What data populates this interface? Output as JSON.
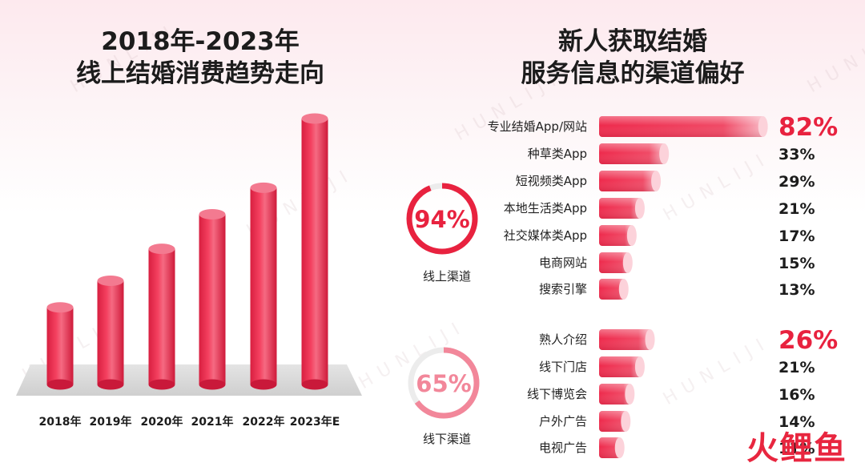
{
  "watermark_text": "HUNLIJI",
  "logo_text": "火鲤鱼",
  "left_panel": {
    "title_line1": "2018年-2023年",
    "title_line2": "线上结婚消费趋势走向"
  },
  "right_panel": {
    "title_line1": "新人获取结婚",
    "title_line2": "服务信息的渠道偏好"
  },
  "colors": {
    "bar_red": "#ee2f4f",
    "highlight_red": "#e8223f",
    "ring_red": "#e8223f",
    "ring_pink": "#f2879a",
    "platform_gray": "#d9d9d9"
  },
  "chart_data": [
    {
      "type": "bar",
      "title": "2018年-2023年 线上结婚消费趋势走向",
      "categories": [
        "2018年",
        "2019年",
        "2020年",
        "2021年",
        "2022年",
        "2023年E"
      ],
      "values": [
        29,
        39,
        51,
        64,
        74,
        100
      ],
      "ylim": [
        0,
        100
      ],
      "xlabel": "",
      "ylabel": "",
      "grid": false,
      "legend": "none"
    },
    {
      "type": "bar",
      "orientation": "horizontal",
      "title": "新人获取结婚 服务信息的渠道偏好",
      "unit": "%",
      "xlim": [
        0,
        100
      ],
      "groups": [
        {
          "name": "线上渠道",
          "total": 94,
          "total_label": "94%",
          "categories": [
            "专业结婚App/网站",
            "种草类App",
            "短视频类App",
            "本地生活类App",
            "社交媒体类App",
            "电商网站",
            "搜索引擎"
          ],
          "values": [
            82,
            33,
            29,
            21,
            17,
            15,
            13
          ],
          "labels": [
            "82%",
            "33%",
            "29%",
            "21%",
            "17%",
            "15%",
            "13%"
          ]
        },
        {
          "name": "线下渠道",
          "total": 65,
          "total_label": "65%",
          "categories": [
            "熟人介绍",
            "线下门店",
            "线下博览会",
            "户外广告",
            "电视广告"
          ],
          "values": [
            26,
            21,
            16,
            14,
            11
          ],
          "labels": [
            "26%",
            "21%",
            "16%",
            "14%",
            "11%"
          ]
        }
      ]
    }
  ]
}
